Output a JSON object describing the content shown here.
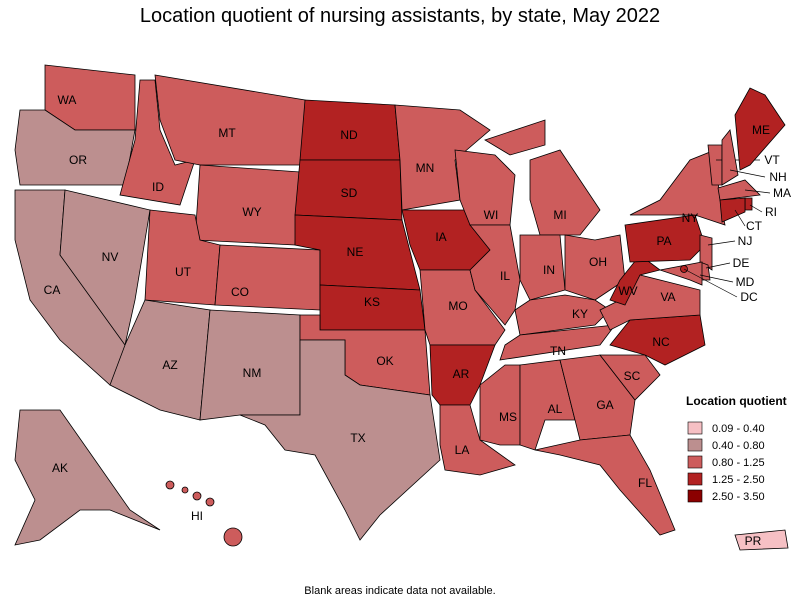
{
  "title": "Location quotient of nursing assistants, by state, May 2022",
  "footnote": "Blank areas indicate data not available.",
  "legend": {
    "title": "Location quotient",
    "items": [
      {
        "label": "0.09 - 0.40",
        "color": "#f6c0c4"
      },
      {
        "label": "0.40 - 0.80",
        "color": "#bc8f8f"
      },
      {
        "label": "0.80 - 1.25",
        "color": "#cd5c5c"
      },
      {
        "label": "1.25 - 2.50",
        "color": "#b22222"
      },
      {
        "label": "2.50 - 3.50",
        "color": "#8b0000"
      }
    ]
  },
  "states": [
    {
      "label": "WA",
      "color": "#cd5c5c"
    },
    {
      "label": "OR",
      "color": "#bc8f8f"
    },
    {
      "label": "CA",
      "color": "#bc8f8f"
    },
    {
      "label": "NV",
      "color": "#bc8f8f"
    },
    {
      "label": "ID",
      "color": "#cd5c5c"
    },
    {
      "label": "MT",
      "color": "#cd5c5c"
    },
    {
      "label": "WY",
      "color": "#cd5c5c"
    },
    {
      "label": "UT",
      "color": "#cd5c5c"
    },
    {
      "label": "CO",
      "color": "#cd5c5c"
    },
    {
      "label": "AZ",
      "color": "#bc8f8f"
    },
    {
      "label": "NM",
      "color": "#bc8f8f"
    },
    {
      "label": "ND",
      "color": "#b22222"
    },
    {
      "label": "SD",
      "color": "#b22222"
    },
    {
      "label": "NE",
      "color": "#b22222"
    },
    {
      "label": "KS",
      "color": "#b22222"
    },
    {
      "label": "OK",
      "color": "#cd5c5c"
    },
    {
      "label": "TX",
      "color": "#bc8f8f"
    },
    {
      "label": "MN",
      "color": "#cd5c5c"
    },
    {
      "label": "IA",
      "color": "#b22222"
    },
    {
      "label": "MO",
      "color": "#cd5c5c"
    },
    {
      "label": "AR",
      "color": "#b22222"
    },
    {
      "label": "LA",
      "color": "#cd5c5c"
    },
    {
      "label": "WI",
      "color": "#cd5c5c"
    },
    {
      "label": "IL",
      "color": "#cd5c5c"
    },
    {
      "label": "MI",
      "color": "#cd5c5c"
    },
    {
      "label": "IN",
      "color": "#cd5c5c"
    },
    {
      "label": "OH",
      "color": "#cd5c5c"
    },
    {
      "label": "KY",
      "color": "#cd5c5c"
    },
    {
      "label": "TN",
      "color": "#cd5c5c"
    },
    {
      "label": "MS",
      "color": "#cd5c5c"
    },
    {
      "label": "AL",
      "color": "#cd5c5c"
    },
    {
      "label": "GA",
      "color": "#cd5c5c"
    },
    {
      "label": "FL",
      "color": "#cd5c5c"
    },
    {
      "label": "SC",
      "color": "#cd5c5c"
    },
    {
      "label": "NC",
      "color": "#b22222"
    },
    {
      "label": "VA",
      "color": "#cd5c5c"
    },
    {
      "label": "WV",
      "color": "#b22222"
    },
    {
      "label": "PA",
      "color": "#b22222"
    },
    {
      "label": "NY",
      "color": "#cd5c5c"
    },
    {
      "label": "VT",
      "color": "#cd5c5c"
    },
    {
      "label": "NH",
      "color": "#cd5c5c"
    },
    {
      "label": "ME",
      "color": "#b22222"
    },
    {
      "label": "MA",
      "color": "#cd5c5c"
    },
    {
      "label": "RI",
      "color": "#b22222"
    },
    {
      "label": "CT",
      "color": "#b22222"
    },
    {
      "label": "NJ",
      "color": "#cd5c5c"
    },
    {
      "label": "DE",
      "color": "#cd5c5c"
    },
    {
      "label": "MD",
      "color": "#cd5c5c"
    },
    {
      "label": "DC",
      "color": "#b22222"
    },
    {
      "label": "AK",
      "color": "#bc8f8f"
    },
    {
      "label": "HI",
      "color": "#cd5c5c"
    },
    {
      "label": "PR",
      "color": "#f6c0c4"
    }
  ]
}
